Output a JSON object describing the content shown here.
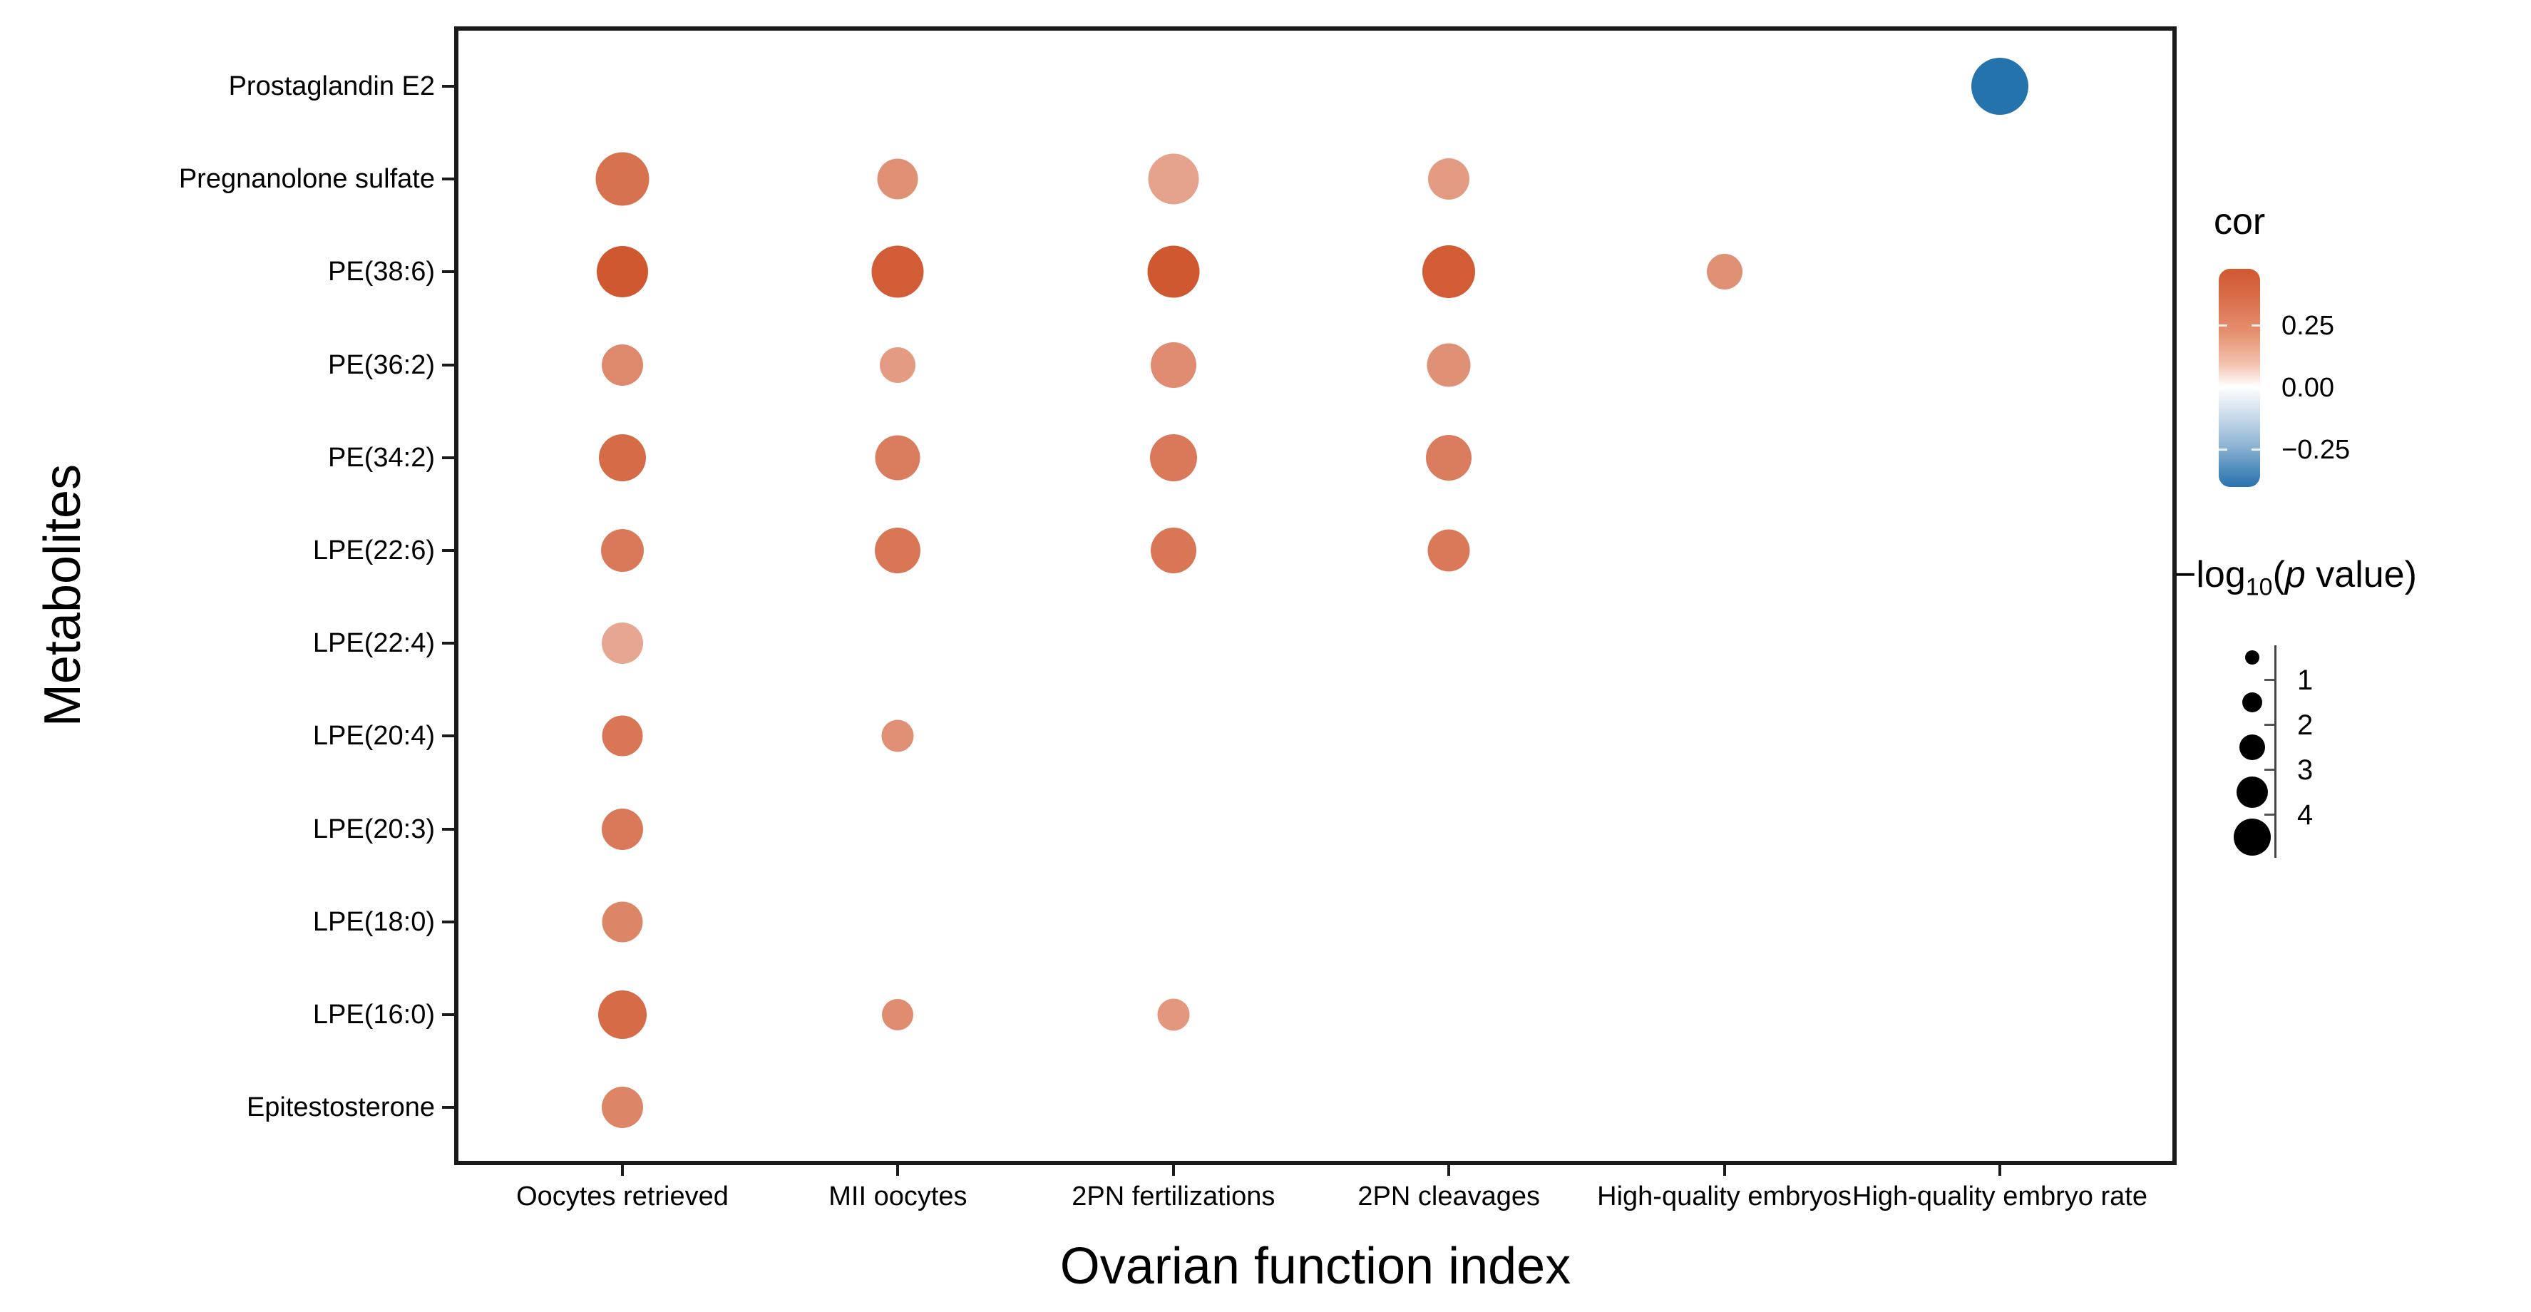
{
  "figure": {
    "x_axis_title": "Ovarian function index",
    "y_axis_title": "Metabolites"
  },
  "chart_data": {
    "type": "bubble",
    "x_categories": [
      "Oocytes retrieved",
      "MII oocytes",
      "2PN fertilizations",
      "2PN cleavages",
      "High-quality embryos",
      "High-quality embryo rate"
    ],
    "y_categories": [
      "Prostaglandin E2",
      "Pregnanolone sulfate",
      "PE(38:6)",
      "PE(36:2)",
      "PE(34:2)",
      "LPE(22:6)",
      "LPE(22:4)",
      "LPE(20:4)",
      "LPE(20:3)",
      "LPE(18:0)",
      "LPE(16:0)",
      "Epitestosterone"
    ],
    "points": [
      {
        "y": "Prostaglandin E2",
        "x": "High-quality embryo rate",
        "cor": -0.43,
        "neg_log10_p": 5.0
      },
      {
        "y": "Pregnanolone sulfate",
        "x": "Oocytes retrieved",
        "cor": 0.38,
        "neg_log10_p": 4.5
      },
      {
        "y": "Pregnanolone sulfate",
        "x": "MII oocytes",
        "cor": 0.3,
        "neg_log10_p": 2.7
      },
      {
        "y": "Pregnanolone sulfate",
        "x": "2PN fertilizations",
        "cor": 0.25,
        "neg_log10_p": 4.1
      },
      {
        "y": "Pregnanolone sulfate",
        "x": "2PN cleavages",
        "cor": 0.27,
        "neg_log10_p": 2.8
      },
      {
        "y": "PE(38:6)",
        "x": "Oocytes retrieved",
        "cor": 0.45,
        "neg_log10_p": 4.2
      },
      {
        "y": "PE(38:6)",
        "x": "MII oocytes",
        "cor": 0.44,
        "neg_log10_p": 4.3
      },
      {
        "y": "PE(38:6)",
        "x": "2PN fertilizations",
        "cor": 0.45,
        "neg_log10_p": 4.3
      },
      {
        "y": "PE(38:6)",
        "x": "2PN cleavages",
        "cor": 0.44,
        "neg_log10_p": 4.4
      },
      {
        "y": "PE(38:6)",
        "x": "High-quality embryos",
        "cor": 0.3,
        "neg_log10_p": 2.0
      },
      {
        "y": "PE(36:2)",
        "x": "Oocytes retrieved",
        "cor": 0.32,
        "neg_log10_p": 2.8
      },
      {
        "y": "PE(36:2)",
        "x": "MII oocytes",
        "cor": 0.27,
        "neg_log10_p": 2.0
      },
      {
        "y": "PE(36:2)",
        "x": "2PN fertilizations",
        "cor": 0.31,
        "neg_log10_p": 3.4
      },
      {
        "y": "PE(36:2)",
        "x": "2PN cleavages",
        "cor": 0.3,
        "neg_log10_p": 3.1
      },
      {
        "y": "PE(34:2)",
        "x": "Oocytes retrieved",
        "cor": 0.4,
        "neg_log10_p": 3.6
      },
      {
        "y": "PE(34:2)",
        "x": "MII oocytes",
        "cor": 0.35,
        "neg_log10_p": 3.3
      },
      {
        "y": "PE(34:2)",
        "x": "2PN fertilizations",
        "cor": 0.36,
        "neg_log10_p": 3.6
      },
      {
        "y": "PE(34:2)",
        "x": "2PN cleavages",
        "cor": 0.35,
        "neg_log10_p": 3.4
      },
      {
        "y": "LPE(22:6)",
        "x": "Oocytes retrieved",
        "cor": 0.36,
        "neg_log10_p": 3.0
      },
      {
        "y": "LPE(22:6)",
        "x": "MII oocytes",
        "cor": 0.37,
        "neg_log10_p": 3.4
      },
      {
        "y": "LPE(22:6)",
        "x": "2PN fertilizations",
        "cor": 0.37,
        "neg_log10_p": 3.4
      },
      {
        "y": "LPE(22:6)",
        "x": "2PN cleavages",
        "cor": 0.36,
        "neg_log10_p": 2.9
      },
      {
        "y": "LPE(22:4)",
        "x": "Oocytes retrieved",
        "cor": 0.24,
        "neg_log10_p": 2.8
      },
      {
        "y": "LPE(20:4)",
        "x": "Oocytes retrieved",
        "cor": 0.37,
        "neg_log10_p": 2.7
      },
      {
        "y": "LPE(20:4)",
        "x": "MII oocytes",
        "cor": 0.3,
        "neg_log10_p": 1.5
      },
      {
        "y": "LPE(20:3)",
        "x": "Oocytes retrieved",
        "cor": 0.36,
        "neg_log10_p": 2.8
      },
      {
        "y": "LPE(18:0)",
        "x": "Oocytes retrieved",
        "cor": 0.33,
        "neg_log10_p": 2.7
      },
      {
        "y": "LPE(16:0)",
        "x": "Oocytes retrieved",
        "cor": 0.4,
        "neg_log10_p": 3.8
      },
      {
        "y": "LPE(16:0)",
        "x": "MII oocytes",
        "cor": 0.31,
        "neg_log10_p": 1.4
      },
      {
        "y": "LPE(16:0)",
        "x": "2PN fertilizations",
        "cor": 0.28,
        "neg_log10_p": 1.5
      },
      {
        "y": "Epitestosterone",
        "x": "Oocytes retrieved",
        "cor": 0.33,
        "neg_log10_p": 2.8
      }
    ],
    "color_legend": {
      "title": "cor",
      "tick_labels": [
        "0.25",
        "0.00",
        "−0.25"
      ],
      "tick_values": [
        0.25,
        0.0,
        -0.25
      ],
      "scale_max": 0.48,
      "scale_min": -0.4,
      "positive_color": "#D05830",
      "mid_color": "#FFFFFF",
      "negative_color": "#1B6CA8"
    },
    "size_legend": {
      "title_prefix": "−log",
      "title_subscript": "10",
      "title_open_paren": "(",
      "title_p": "p",
      "title_rest": " value",
      "title_close_paren": ")",
      "tick_labels": [
        "1",
        "2",
        "3",
        "4"
      ],
      "dot_values": [
        0.5,
        1.5,
        2.5,
        3.5,
        4.5
      ]
    },
    "axes": {
      "xlabel": "Ovarian function index",
      "ylabel": "Metabolites",
      "grid": false,
      "legend_position": "right"
    }
  }
}
